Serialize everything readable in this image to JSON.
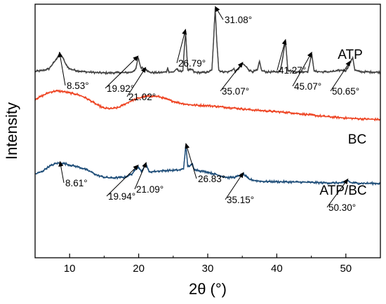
{
  "chart_data": {
    "type": "line",
    "xlabel": "2θ (°)",
    "ylabel": "Intensity",
    "xlim": [
      5,
      55
    ],
    "xticks": [
      10,
      20,
      30,
      40,
      50
    ],
    "yticks_shown": false,
    "grid": false,
    "series": [
      {
        "name": "ATP",
        "color": "#444444",
        "baseline": 0.735,
        "points": [
          [
            5,
            0.735
          ],
          [
            6,
            0.738
          ],
          [
            7,
            0.745
          ],
          [
            8,
            0.78
          ],
          [
            8.53,
            0.805
          ],
          [
            9,
            0.79
          ],
          [
            9.5,
            0.76
          ],
          [
            10,
            0.745
          ],
          [
            11,
            0.738
          ],
          [
            12,
            0.734
          ],
          [
            13,
            0.732
          ],
          [
            14,
            0.73
          ],
          [
            15,
            0.729
          ],
          [
            16,
            0.729
          ],
          [
            17,
            0.73
          ],
          [
            18,
            0.73
          ],
          [
            19,
            0.732
          ],
          [
            19.6,
            0.745
          ],
          [
            19.92,
            0.79
          ],
          [
            20.3,
            0.75
          ],
          [
            21.02,
            0.745
          ],
          [
            21.5,
            0.732
          ],
          [
            22,
            0.73
          ],
          [
            23,
            0.73
          ],
          [
            24,
            0.733
          ],
          [
            24.2,
            0.748
          ],
          [
            24.4,
            0.733
          ],
          [
            25,
            0.732
          ],
          [
            25.5,
            0.745
          ],
          [
            25.8,
            0.735
          ],
          [
            26.4,
            0.738
          ],
          [
            26.79,
            0.895
          ],
          [
            27.1,
            0.74
          ],
          [
            27.8,
            0.742
          ],
          [
            28,
            0.732
          ],
          [
            29,
            0.73
          ],
          [
            30,
            0.732
          ],
          [
            30.6,
            0.74
          ],
          [
            30.85,
            0.86
          ],
          [
            31.08,
            0.985
          ],
          [
            31.3,
            0.86
          ],
          [
            31.6,
            0.74
          ],
          [
            32,
            0.734
          ],
          [
            33,
            0.733
          ],
          [
            33.8,
            0.745
          ],
          [
            34,
            0.733
          ],
          [
            34.6,
            0.75
          ],
          [
            35.07,
            0.765
          ],
          [
            35.5,
            0.755
          ],
          [
            36,
            0.74
          ],
          [
            36.5,
            0.734
          ],
          [
            37.2,
            0.74
          ],
          [
            37.5,
            0.775
          ],
          [
            37.8,
            0.738
          ],
          [
            38.5,
            0.733
          ],
          [
            39.5,
            0.733
          ],
          [
            40.5,
            0.735
          ],
          [
            41.27,
            0.855
          ],
          [
            41.6,
            0.74
          ],
          [
            42.5,
            0.734
          ],
          [
            43.5,
            0.733
          ],
          [
            44.5,
            0.735
          ],
          [
            45.07,
            0.805
          ],
          [
            45.4,
            0.736
          ],
          [
            46.5,
            0.733
          ],
          [
            48,
            0.734
          ],
          [
            49.5,
            0.74
          ],
          [
            50,
            0.738
          ],
          [
            50.65,
            0.77
          ],
          [
            51,
            0.79
          ],
          [
            51.3,
            0.74
          ],
          [
            52,
            0.734
          ],
          [
            53,
            0.733
          ],
          [
            54,
            0.732
          ],
          [
            55,
            0.732
          ]
        ]
      },
      {
        "name": "BC",
        "color": "#ee4423",
        "points": [
          [
            5,
            0.625
          ],
          [
            6,
            0.638
          ],
          [
            7,
            0.652
          ],
          [
            8,
            0.658
          ],
          [
            9,
            0.656
          ],
          [
            10,
            0.65
          ],
          [
            11,
            0.645
          ],
          [
            12,
            0.635
          ],
          [
            13,
            0.62
          ],
          [
            14,
            0.603
          ],
          [
            15,
            0.59
          ],
          [
            16,
            0.588
          ],
          [
            17,
            0.592
          ],
          [
            18,
            0.606
          ],
          [
            19,
            0.62
          ],
          [
            20,
            0.63
          ],
          [
            21,
            0.636
          ],
          [
            22,
            0.638
          ],
          [
            23,
            0.635
          ],
          [
            24,
            0.626
          ],
          [
            25,
            0.617
          ],
          [
            26,
            0.61
          ],
          [
            27,
            0.605
          ],
          [
            28,
            0.602
          ],
          [
            30,
            0.6
          ],
          [
            32,
            0.595
          ],
          [
            34,
            0.59
          ],
          [
            36,
            0.584
          ],
          [
            38,
            0.58
          ],
          [
            40,
            0.576
          ],
          [
            42,
            0.572
          ],
          [
            44,
            0.566
          ],
          [
            46,
            0.56
          ],
          [
            48,
            0.555
          ],
          [
            50,
            0.551
          ],
          [
            52,
            0.548
          ],
          [
            55,
            0.545
          ]
        ]
      },
      {
        "name": "ATP/BC",
        "color": "#1f4e79",
        "points": [
          [
            5,
            0.33
          ],
          [
            6,
            0.34
          ],
          [
            7,
            0.36
          ],
          [
            8,
            0.372
          ],
          [
            8.61,
            0.374
          ],
          [
            9.5,
            0.37
          ],
          [
            10,
            0.366
          ],
          [
            11,
            0.36
          ],
          [
            12,
            0.352
          ],
          [
            13,
            0.34
          ],
          [
            14,
            0.325
          ],
          [
            15,
            0.318
          ],
          [
            16,
            0.315
          ],
          [
            17,
            0.316
          ],
          [
            18,
            0.318
          ],
          [
            19,
            0.33
          ],
          [
            19.94,
            0.36
          ],
          [
            20.4,
            0.34
          ],
          [
            21.09,
            0.37
          ],
          [
            21.5,
            0.338
          ],
          [
            22,
            0.34
          ],
          [
            23,
            0.342
          ],
          [
            24,
            0.344
          ],
          [
            25,
            0.345
          ],
          [
            26,
            0.346
          ],
          [
            26.5,
            0.352
          ],
          [
            26.83,
            0.445
          ],
          [
            27.1,
            0.36
          ],
          [
            27.8,
            0.368
          ],
          [
            28,
            0.35
          ],
          [
            29,
            0.342
          ],
          [
            30,
            0.338
          ],
          [
            31,
            0.33
          ],
          [
            32,
            0.322
          ],
          [
            33,
            0.316
          ],
          [
            34,
            0.318
          ],
          [
            35.15,
            0.33
          ],
          [
            36,
            0.31
          ],
          [
            37,
            0.304
          ],
          [
            38,
            0.301
          ],
          [
            40,
            0.3
          ],
          [
            42,
            0.299
          ],
          [
            44,
            0.298
          ],
          [
            46,
            0.296
          ],
          [
            48,
            0.295
          ],
          [
            50,
            0.296
          ],
          [
            50.3,
            0.305
          ],
          [
            50.7,
            0.296
          ],
          [
            52,
            0.294
          ],
          [
            55,
            0.293
          ]
        ]
      }
    ],
    "annotations": [
      {
        "series": "ATP",
        "x": 8.53,
        "text": "8.53°"
      },
      {
        "series": "ATP",
        "x": 19.92,
        "text": "19.92°"
      },
      {
        "series": "ATP",
        "x": 21.02,
        "text": "21.02°"
      },
      {
        "series": "ATP",
        "x": 26.79,
        "text": "26.79°"
      },
      {
        "series": "ATP",
        "x": 31.08,
        "text": "31.08°"
      },
      {
        "series": "ATP",
        "x": 35.07,
        "text": "35.07°"
      },
      {
        "series": "ATP",
        "x": 41.27,
        "text": "41.27°"
      },
      {
        "series": "ATP",
        "x": 45.07,
        "text": "45.07°"
      },
      {
        "series": "ATP",
        "x": 50.65,
        "text": "50.65°"
      },
      {
        "series": "ATP/BC",
        "x": 8.61,
        "text": "8.61°"
      },
      {
        "series": "ATP/BC",
        "x": 19.94,
        "text": "19.94°"
      },
      {
        "series": "ATP/BC",
        "x": 21.09,
        "text": "21.09°"
      },
      {
        "series": "ATP/BC",
        "x": 26.83,
        "text": "26.83°"
      },
      {
        "series": "ATP/BC",
        "x": 35.15,
        "text": "35.15°"
      },
      {
        "series": "ATP/BC",
        "x": 50.3,
        "text": "50.30°"
      }
    ]
  }
}
